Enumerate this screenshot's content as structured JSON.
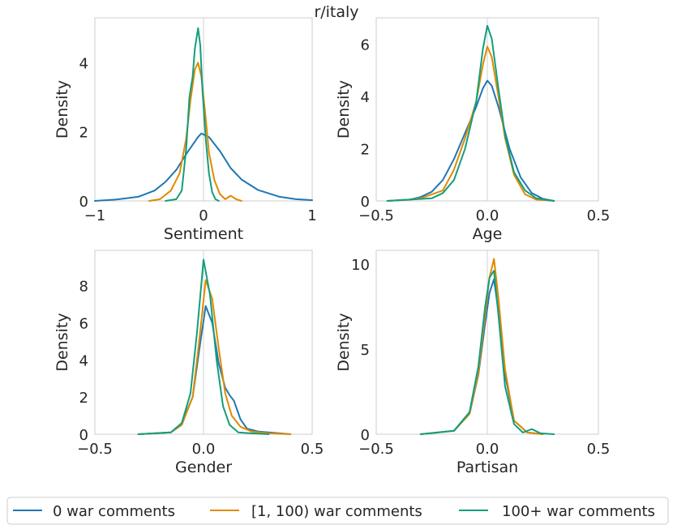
{
  "figure_title": "r/italy",
  "legend": [
    {
      "label": "0 war comments",
      "color": "#1f77b4"
    },
    {
      "label": "[1, 100) war comments",
      "color": "#e08a00"
    },
    {
      "label": "100+ war comments",
      "color": "#129e7e"
    }
  ],
  "chart_data": [
    {
      "type": "line",
      "title": "",
      "xlabel": "Sentiment",
      "ylabel": "Density",
      "xlim": [
        -1,
        1
      ],
      "ylim": [
        0,
        5.3
      ],
      "xticks": [
        "−1",
        "0",
        "1"
      ],
      "xtick_values": [
        -1,
        0,
        1
      ],
      "yticks": [
        "0",
        "2",
        "4"
      ],
      "ytick_values": [
        0,
        2,
        4
      ],
      "vline": 0,
      "series": [
        {
          "name": "0 war comments",
          "color": "#1f77b4",
          "x": [
            -1,
            -0.8,
            -0.6,
            -0.45,
            -0.35,
            -0.25,
            -0.15,
            -0.05,
            -0.02,
            0.05,
            0.15,
            0.25,
            0.35,
            0.5,
            0.7,
            0.85,
            1
          ],
          "y": [
            0,
            0.04,
            0.12,
            0.3,
            0.55,
            0.9,
            1.4,
            1.85,
            1.95,
            1.85,
            1.45,
            0.95,
            0.62,
            0.32,
            0.12,
            0.05,
            0.02
          ]
        },
        {
          "name": "[1, 100) war comments",
          "color": "#e08a00",
          "x": [
            -0.5,
            -0.4,
            -0.3,
            -0.22,
            -0.16,
            -0.12,
            -0.08,
            -0.05,
            -0.02,
            0.02,
            0.05,
            0.1,
            0.15,
            0.2,
            0.25,
            0.3,
            0.35
          ],
          "y": [
            0,
            0.05,
            0.3,
            0.8,
            1.8,
            2.9,
            3.8,
            4.0,
            3.6,
            2.4,
            1.4,
            0.6,
            0.2,
            0.05,
            0.15,
            0.05,
            0
          ]
        },
        {
          "name": "100+ war comments",
          "color": "#129e7e",
          "x": [
            -0.35,
            -0.25,
            -0.2,
            -0.16,
            -0.13,
            -0.1,
            -0.08,
            -0.05,
            -0.03,
            -0.01,
            0.02,
            0.05,
            0.08,
            0.11,
            0.14
          ],
          "y": [
            0,
            0.05,
            0.3,
            1.5,
            3.0,
            3.6,
            4.4,
            5.0,
            4.5,
            3.2,
            1.8,
            0.8,
            0.25,
            0.05,
            0
          ]
        }
      ]
    },
    {
      "type": "line",
      "title": "",
      "xlabel": "Age",
      "ylabel": "Density",
      "xlim": [
        -0.5,
        0.5
      ],
      "ylim": [
        0,
        7.0
      ],
      "xticks": [
        "−0.5",
        "0.0",
        "0.5"
      ],
      "xtick_values": [
        -0.5,
        0,
        0.5
      ],
      "yticks": [
        "0",
        "2",
        "4",
        "6"
      ],
      "ytick_values": [
        0,
        2,
        4,
        6
      ],
      "vline": 0,
      "series": [
        {
          "name": "0 war comments",
          "color": "#1f77b4",
          "x": [
            -0.45,
            -0.35,
            -0.3,
            -0.25,
            -0.2,
            -0.15,
            -0.1,
            -0.05,
            -0.02,
            0.0,
            0.02,
            0.05,
            0.1,
            0.15,
            0.2,
            0.25,
            0.3
          ],
          "y": [
            0,
            0.05,
            0.15,
            0.35,
            0.8,
            1.6,
            2.6,
            3.6,
            4.3,
            4.6,
            4.4,
            3.6,
            2.0,
            0.9,
            0.3,
            0.08,
            0
          ]
        },
        {
          "name": "[1, 100) war comments",
          "color": "#e08a00",
          "x": [
            -0.45,
            -0.35,
            -0.3,
            -0.2,
            -0.15,
            -0.1,
            -0.05,
            -0.02,
            0.0,
            0.02,
            0.05,
            0.08,
            0.12,
            0.17,
            0.22,
            0.3
          ],
          "y": [
            0,
            0.05,
            0.1,
            0.4,
            1.2,
            2.4,
            3.8,
            5.2,
            5.9,
            5.5,
            4.0,
            2.4,
            1.0,
            0.25,
            0.05,
            0
          ]
        },
        {
          "name": "100+ war comments",
          "color": "#129e7e",
          "x": [
            -0.45,
            -0.35,
            -0.25,
            -0.2,
            -0.15,
            -0.1,
            -0.05,
            -0.02,
            0.0,
            0.02,
            0.05,
            0.08,
            0.12,
            0.17,
            0.22,
            0.3
          ],
          "y": [
            0,
            0.05,
            0.1,
            0.3,
            0.8,
            2.0,
            3.8,
            5.8,
            6.7,
            6.2,
            4.3,
            2.5,
            1.1,
            0.4,
            0.1,
            0
          ]
        }
      ]
    },
    {
      "type": "line",
      "title": "",
      "xlabel": "Gender",
      "ylabel": "Density",
      "xlim": [
        -0.5,
        0.5
      ],
      "ylim": [
        0,
        9.9
      ],
      "xticks": [
        "−0.5",
        "0.0",
        "0.5"
      ],
      "xtick_values": [
        -0.5,
        0,
        0.5
      ],
      "yticks": [
        "0",
        "2",
        "4",
        "6",
        "8"
      ],
      "ytick_values": [
        0,
        2,
        4,
        6,
        8
      ],
      "vline": 0,
      "series": [
        {
          "name": "0 war comments",
          "color": "#1f77b4",
          "x": [
            -0.3,
            -0.15,
            -0.1,
            -0.05,
            -0.02,
            0.01,
            0.04,
            0.07,
            0.1,
            0.12,
            0.14,
            0.17,
            0.2,
            0.25,
            0.3,
            0.4
          ],
          "y": [
            0,
            0.1,
            0.6,
            2.0,
            4.5,
            6.9,
            6.0,
            3.8,
            2.5,
            2.1,
            1.8,
            0.8,
            0.3,
            0.15,
            0.1,
            0
          ]
        },
        {
          "name": "[1, 100) war comments",
          "color": "#e08a00",
          "x": [
            -0.3,
            -0.15,
            -0.1,
            -0.05,
            -0.02,
            0.01,
            0.04,
            0.07,
            0.1,
            0.13,
            0.17,
            0.22,
            0.3,
            0.4
          ],
          "y": [
            0,
            0.1,
            0.5,
            2.0,
            5.0,
            8.3,
            7.3,
            4.6,
            2.2,
            1.0,
            0.4,
            0.15,
            0.05,
            0
          ]
        },
        {
          "name": "100+ war comments",
          "color": "#129e7e",
          "x": [
            -0.3,
            -0.15,
            -0.1,
            -0.06,
            -0.03,
            0.0,
            0.03,
            0.06,
            0.09,
            0.12,
            0.16,
            0.22,
            0.3
          ],
          "y": [
            0,
            0.1,
            0.6,
            2.2,
            5.5,
            9.4,
            7.5,
            4.0,
            1.5,
            0.5,
            0.1,
            0.05,
            0
          ]
        }
      ]
    },
    {
      "type": "line",
      "title": "",
      "xlabel": "Partisan",
      "ylabel": "Density",
      "xlim": [
        -0.5,
        0.5
      ],
      "ylim": [
        0,
        10.8
      ],
      "xticks": [
        "−0.5",
        "0.0",
        "0.5"
      ],
      "xtick_values": [
        -0.5,
        0,
        0.5
      ],
      "yticks": [
        "0",
        "5",
        "10"
      ],
      "ytick_values": [
        0,
        5,
        10
      ],
      "vline": 0,
      "series": [
        {
          "name": "0 war comments",
          "color": "#1f77b4",
          "x": [
            -0.3,
            -0.15,
            -0.08,
            -0.04,
            -0.01,
            0.01,
            0.03,
            0.05,
            0.08,
            0.12,
            0.18,
            0.25
          ],
          "y": [
            0,
            0.2,
            1.2,
            3.5,
            6.5,
            8.3,
            9.1,
            7.2,
            3.5,
            0.8,
            0.1,
            0
          ]
        },
        {
          "name": "[1, 100) war comments",
          "color": "#e08a00",
          "x": [
            -0.3,
            -0.15,
            -0.08,
            -0.04,
            -0.01,
            0.01,
            0.03,
            0.05,
            0.08,
            0.12,
            0.18,
            0.25
          ],
          "y": [
            0,
            0.2,
            1.2,
            3.6,
            7.0,
            9.2,
            10.3,
            8.0,
            3.8,
            0.8,
            0.1,
            0
          ]
        },
        {
          "name": "100+ war comments",
          "color": "#129e7e",
          "x": [
            -0.3,
            -0.15,
            -0.08,
            -0.04,
            -0.01,
            0.01,
            0.03,
            0.05,
            0.08,
            0.12,
            0.16,
            0.2,
            0.24,
            0.3
          ],
          "y": [
            0,
            0.2,
            1.3,
            4.0,
            7.5,
            9.2,
            9.6,
            7.0,
            2.8,
            0.6,
            0.1,
            0.3,
            0.05,
            0
          ]
        }
      ]
    }
  ]
}
